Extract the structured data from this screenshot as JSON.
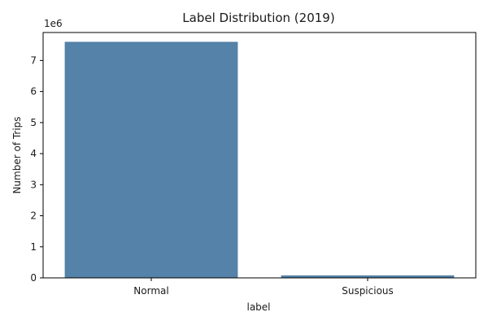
{
  "chart_data": {
    "type": "bar",
    "title": "Label Distribution (2019)",
    "xlabel": "label",
    "ylabel": "Number of Trips",
    "y_multiplier_label": "1e6",
    "categories": [
      "Normal",
      "Suspicious"
    ],
    "values": [
      7.6,
      0.08
    ],
    "value_units": "millions",
    "ylim": [
      0,
      7.9
    ],
    "yticks": [
      0,
      1,
      2,
      3,
      4,
      5,
      6,
      7
    ],
    "bar_color": "#5482a8",
    "grid": false,
    "legend": "none"
  }
}
